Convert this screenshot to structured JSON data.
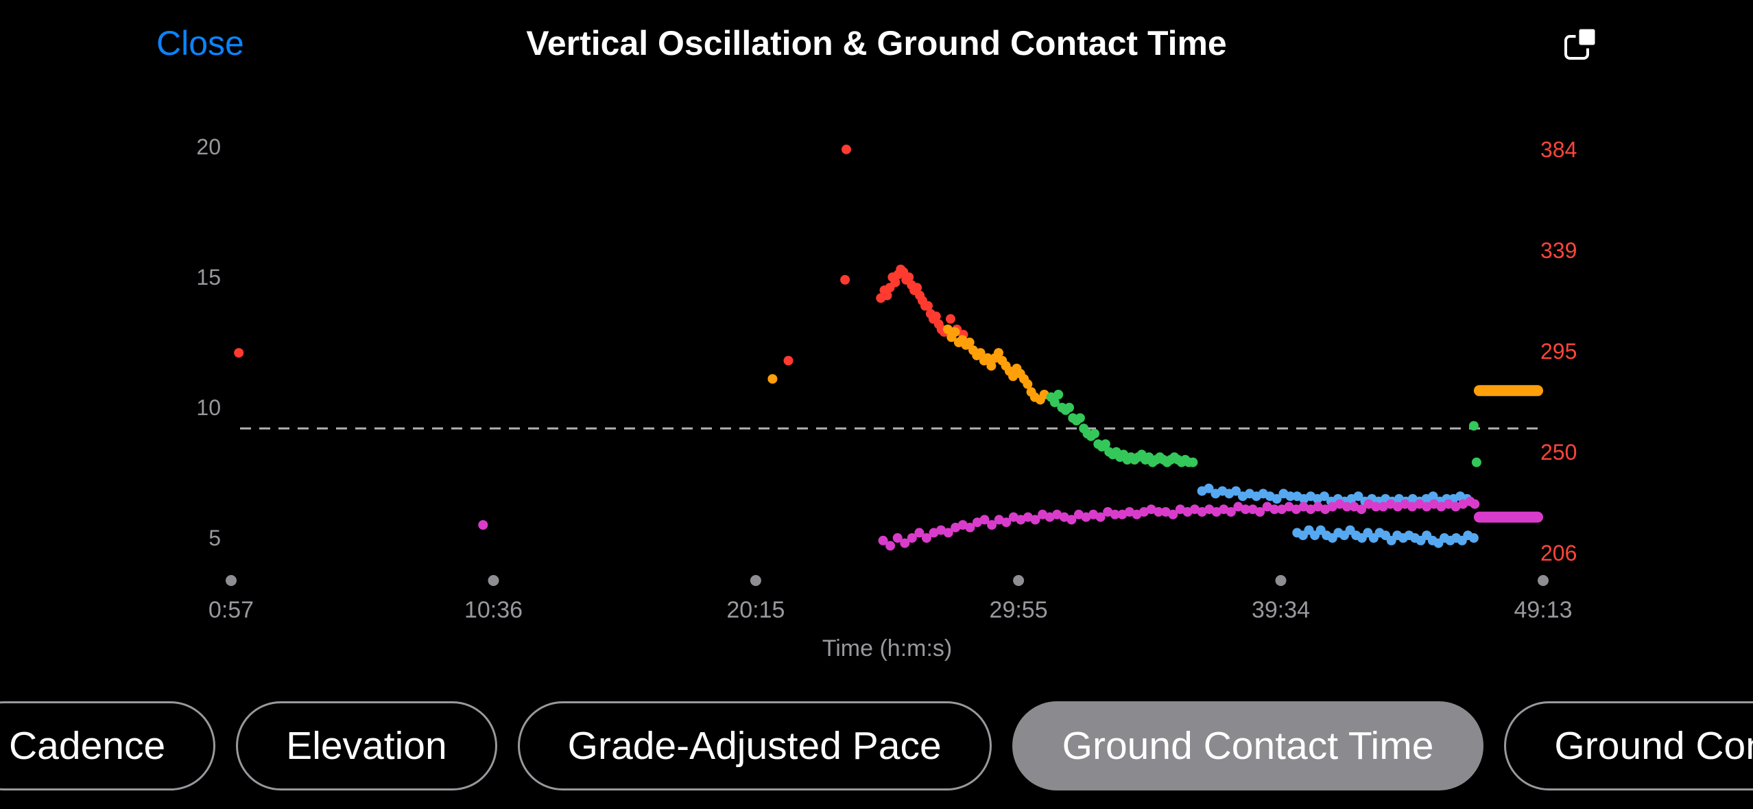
{
  "header": {
    "close_label": "Close",
    "title": "Vertical Oscillation & Ground Contact Time"
  },
  "chips": [
    {
      "label": "Cadence",
      "selected": false
    },
    {
      "label": "Elevation",
      "selected": false
    },
    {
      "label": "Grade-Adjusted Pace",
      "selected": false
    },
    {
      "label": "Ground Contact Time",
      "selected": true
    },
    {
      "label": "Ground Con",
      "selected": false
    }
  ],
  "colors": {
    "accent_blue": "#0a84ff",
    "axis_gray": "#98989e",
    "right_axis_red": "#ff453a",
    "selected_chip_bg": "#8a8a8f",
    "series_red": "#ff3b30",
    "series_orange": "#ff9f0a",
    "series_green": "#34c759",
    "series_blue": "#56a8f0",
    "series_magenta": "#d93ccb",
    "background": "#000000"
  },
  "chart_data": {
    "type": "scatter",
    "title": "Vertical Oscillation & Ground Contact Time",
    "xlabel": "Time (h:m:s)",
    "units_note": "x values are elapsed seconds; y values are in left-axis units",
    "xlim_seconds": [
      57,
      2953
    ],
    "ylim_left": [
      5,
      20
    ],
    "x_axis": {
      "tick_labels": [
        "0:57",
        "10:36",
        "20:15",
        "29:55",
        "39:34",
        "49:13"
      ],
      "tick_seconds": [
        57,
        636,
        1215,
        1795,
        2374,
        2953
      ],
      "color": "#98989e"
    },
    "left_axis": {
      "ticks": [
        20,
        15,
        10,
        5
      ],
      "color": "#98989e"
    },
    "right_axis": {
      "ticks": [
        384,
        339,
        295,
        250,
        206
      ],
      "color": "#ff453a"
    },
    "reference_line": {
      "value": 9.2,
      "style": "dashed",
      "color": "#aeaeb2"
    },
    "series": [
      {
        "name": "vertical-oscillation-high",
        "color": "#ff3b30",
        "points": [
          [
            74,
            12.1
          ],
          [
            1287,
            11.8
          ],
          [
            1412,
            14.9
          ],
          [
            1415,
            19.9
          ],
          [
            1491,
            14.2
          ],
          [
            1499,
            14.5
          ],
          [
            1505,
            14.3
          ],
          [
            1511,
            14.6
          ],
          [
            1517,
            15.0
          ],
          [
            1523,
            14.8
          ],
          [
            1529,
            15.1
          ],
          [
            1535,
            15.3
          ],
          [
            1541,
            15.2
          ],
          [
            1547,
            14.9
          ],
          [
            1553,
            15.0
          ],
          [
            1559,
            14.7
          ],
          [
            1565,
            14.5
          ],
          [
            1571,
            14.6
          ],
          [
            1577,
            14.3
          ],
          [
            1583,
            14.1
          ],
          [
            1589,
            13.9
          ],
          [
            1595,
            13.9
          ],
          [
            1601,
            13.6
          ],
          [
            1607,
            13.4
          ],
          [
            1613,
            13.5
          ],
          [
            1619,
            13.2
          ],
          [
            1625,
            13.0
          ],
          [
            1631,
            12.9
          ],
          [
            1645,
            13.4
          ],
          [
            1659,
            13.0
          ],
          [
            1673,
            12.8
          ]
        ]
      },
      {
        "name": "vertical-oscillation-mid",
        "color": "#ff9f0a",
        "points": [
          [
            1252,
            11.1
          ],
          [
            1639,
            13.0
          ],
          [
            1647,
            12.7
          ],
          [
            1655,
            12.9
          ],
          [
            1663,
            12.5
          ],
          [
            1671,
            12.6
          ],
          [
            1679,
            12.4
          ],
          [
            1687,
            12.5
          ],
          [
            1695,
            12.2
          ],
          [
            1703,
            12.0
          ],
          [
            1711,
            12.1
          ],
          [
            1719,
            11.8
          ],
          [
            1727,
            11.9
          ],
          [
            1735,
            11.6
          ],
          [
            1743,
            11.9
          ],
          [
            1751,
            12.1
          ],
          [
            1759,
            11.8
          ],
          [
            1767,
            11.6
          ],
          [
            1775,
            11.4
          ],
          [
            1783,
            11.2
          ],
          [
            1791,
            11.5
          ],
          [
            1799,
            11.3
          ],
          [
            1807,
            11.1
          ],
          [
            1815,
            10.9
          ],
          [
            1823,
            10.6
          ],
          [
            1831,
            10.4
          ],
          [
            1843,
            10.3
          ],
          [
            1852,
            10.5
          ]
        ]
      },
      {
        "name": "vertical-oscillation-low",
        "color": "#34c759",
        "points": [
          [
            1867,
            10.4
          ],
          [
            1875,
            10.2
          ],
          [
            1883,
            10.5
          ],
          [
            1891,
            10.0
          ],
          [
            1899,
            9.9
          ],
          [
            1907,
            10.0
          ],
          [
            1915,
            9.6
          ],
          [
            1923,
            9.5
          ],
          [
            1931,
            9.6
          ],
          [
            1939,
            9.2
          ],
          [
            1947,
            9.0
          ],
          [
            1955,
            8.9
          ],
          [
            1963,
            9.0
          ],
          [
            1971,
            8.6
          ],
          [
            1979,
            8.5
          ],
          [
            1987,
            8.6
          ],
          [
            1995,
            8.3
          ],
          [
            2003,
            8.2
          ],
          [
            2011,
            8.3
          ],
          [
            2019,
            8.1
          ],
          [
            2027,
            8.2
          ],
          [
            2035,
            8.0
          ],
          [
            2043,
            8.1
          ],
          [
            2051,
            8.0
          ],
          [
            2059,
            8.1
          ],
          [
            2067,
            8.2
          ],
          [
            2075,
            8.0
          ],
          [
            2083,
            8.1
          ],
          [
            2091,
            7.9
          ],
          [
            2099,
            8.0
          ],
          [
            2107,
            8.1
          ],
          [
            2115,
            8.0
          ],
          [
            2123,
            7.9
          ],
          [
            2131,
            8.0
          ],
          [
            2139,
            8.1
          ],
          [
            2147,
            8.0
          ],
          [
            2155,
            7.9
          ],
          [
            2163,
            8.0
          ],
          [
            2171,
            7.9
          ],
          [
            2180,
            7.9
          ],
          [
            2800,
            9.3
          ],
          [
            2806,
            7.9
          ]
        ]
      },
      {
        "name": "ground-contact-time-blue",
        "color": "#56a8f0",
        "points": [
          [
            2200,
            6.8
          ],
          [
            2215,
            6.9
          ],
          [
            2230,
            6.7
          ],
          [
            2245,
            6.8
          ],
          [
            2260,
            6.7
          ],
          [
            2275,
            6.8
          ],
          [
            2290,
            6.6
          ],
          [
            2305,
            6.7
          ],
          [
            2320,
            6.6
          ],
          [
            2335,
            6.7
          ],
          [
            2350,
            6.6
          ],
          [
            2365,
            6.5
          ],
          [
            2380,
            6.7
          ],
          [
            2395,
            6.6
          ],
          [
            2410,
            6.6
          ],
          [
            2425,
            6.5
          ],
          [
            2440,
            6.6
          ],
          [
            2455,
            6.5
          ],
          [
            2470,
            6.6
          ],
          [
            2485,
            6.4
          ],
          [
            2500,
            6.5
          ],
          [
            2515,
            6.4
          ],
          [
            2530,
            6.5
          ],
          [
            2545,
            6.6
          ],
          [
            2560,
            6.4
          ],
          [
            2575,
            6.5
          ],
          [
            2590,
            6.4
          ],
          [
            2605,
            6.5
          ],
          [
            2620,
            6.4
          ],
          [
            2635,
            6.5
          ],
          [
            2650,
            6.4
          ],
          [
            2665,
            6.5
          ],
          [
            2680,
            6.4
          ],
          [
            2695,
            6.5
          ],
          [
            2710,
            6.6
          ],
          [
            2725,
            6.4
          ],
          [
            2740,
            6.5
          ],
          [
            2755,
            6.5
          ],
          [
            2770,
            6.6
          ],
          [
            2785,
            6.5
          ],
          [
            2410,
            5.2
          ],
          [
            2423,
            5.1
          ],
          [
            2436,
            5.3
          ],
          [
            2449,
            5.1
          ],
          [
            2462,
            5.3
          ],
          [
            2475,
            5.1
          ],
          [
            2488,
            5.0
          ],
          [
            2501,
            5.2
          ],
          [
            2514,
            5.1
          ],
          [
            2527,
            5.3
          ],
          [
            2540,
            5.1
          ],
          [
            2553,
            5.0
          ],
          [
            2566,
            5.2
          ],
          [
            2579,
            5.0
          ],
          [
            2592,
            5.2
          ],
          [
            2605,
            5.1
          ],
          [
            2618,
            4.9
          ],
          [
            2631,
            5.1
          ],
          [
            2644,
            5.0
          ],
          [
            2657,
            5.1
          ],
          [
            2670,
            5.0
          ],
          [
            2683,
            4.9
          ],
          [
            2696,
            5.1
          ],
          [
            2709,
            4.9
          ],
          [
            2722,
            4.8
          ],
          [
            2735,
            5.0
          ],
          [
            2748,
            4.9
          ],
          [
            2761,
            5.0
          ],
          [
            2774,
            4.9
          ],
          [
            2787,
            5.1
          ],
          [
            2800,
            5.0
          ]
        ]
      },
      {
        "name": "ground-contact-time-magenta",
        "color": "#d93ccb",
        "points": [
          [
            613,
            5.5
          ],
          [
            1496,
            4.9
          ],
          [
            1512,
            4.7
          ],
          [
            1528,
            5.0
          ],
          [
            1544,
            4.8
          ],
          [
            1560,
            5.0
          ],
          [
            1576,
            5.2
          ],
          [
            1592,
            5.0
          ],
          [
            1608,
            5.2
          ],
          [
            1624,
            5.3
          ],
          [
            1640,
            5.2
          ],
          [
            1656,
            5.4
          ],
          [
            1672,
            5.5
          ],
          [
            1688,
            5.4
          ],
          [
            1704,
            5.6
          ],
          [
            1720,
            5.7
          ],
          [
            1736,
            5.5
          ],
          [
            1752,
            5.7
          ],
          [
            1768,
            5.6
          ],
          [
            1784,
            5.8
          ],
          [
            1800,
            5.7
          ],
          [
            1816,
            5.8
          ],
          [
            1832,
            5.7
          ],
          [
            1848,
            5.9
          ],
          [
            1864,
            5.8
          ],
          [
            1880,
            5.9
          ],
          [
            1896,
            5.8
          ],
          [
            1912,
            5.7
          ],
          [
            1928,
            5.9
          ],
          [
            1944,
            5.8
          ],
          [
            1960,
            5.9
          ],
          [
            1976,
            5.8
          ],
          [
            1992,
            6.0
          ],
          [
            2008,
            5.9
          ],
          [
            2024,
            5.9
          ],
          [
            2040,
            6.0
          ],
          [
            2056,
            5.9
          ],
          [
            2072,
            6.0
          ],
          [
            2088,
            6.1
          ],
          [
            2104,
            6.0
          ],
          [
            2120,
            6.0
          ],
          [
            2136,
            5.9
          ],
          [
            2152,
            6.1
          ],
          [
            2168,
            6.0
          ],
          [
            2184,
            6.1
          ],
          [
            2200,
            6.0
          ],
          [
            2216,
            6.1
          ],
          [
            2232,
            6.0
          ],
          [
            2248,
            6.1
          ],
          [
            2264,
            6.0
          ],
          [
            2280,
            6.2
          ],
          [
            2296,
            6.1
          ],
          [
            2312,
            6.1
          ],
          [
            2328,
            6.0
          ],
          [
            2344,
            6.2
          ],
          [
            2360,
            6.1
          ],
          [
            2376,
            6.1
          ],
          [
            2392,
            6.2
          ],
          [
            2408,
            6.1
          ],
          [
            2424,
            6.2
          ],
          [
            2440,
            6.1
          ],
          [
            2456,
            6.2
          ],
          [
            2472,
            6.1
          ],
          [
            2488,
            6.2
          ],
          [
            2504,
            6.3
          ],
          [
            2520,
            6.2
          ],
          [
            2536,
            6.2
          ],
          [
            2552,
            6.1
          ],
          [
            2568,
            6.3
          ],
          [
            2584,
            6.2
          ],
          [
            2600,
            6.2
          ],
          [
            2616,
            6.3
          ],
          [
            2632,
            6.2
          ],
          [
            2648,
            6.3
          ],
          [
            2664,
            6.2
          ],
          [
            2680,
            6.3
          ],
          [
            2696,
            6.2
          ],
          [
            2712,
            6.3
          ],
          [
            2728,
            6.2
          ],
          [
            2744,
            6.3
          ],
          [
            2760,
            6.2
          ],
          [
            2776,
            6.3
          ],
          [
            2792,
            6.4
          ],
          [
            2802,
            6.3
          ]
        ]
      }
    ],
    "bars": [
      {
        "name": "orange-summary-bar",
        "color": "#ff9f0a",
        "t_start": 2800,
        "t_end": 2953,
        "value": 10.65
      },
      {
        "name": "magenta-summary-bar",
        "color": "#d93ccb",
        "t_start": 2800,
        "t_end": 2953,
        "value": 5.8
      }
    ]
  }
}
